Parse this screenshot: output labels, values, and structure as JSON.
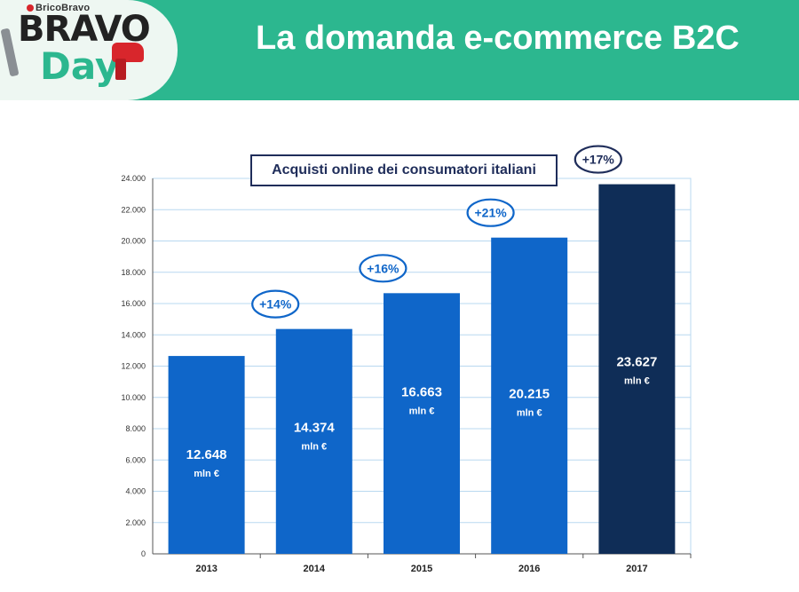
{
  "header": {
    "logo_brand": "BricoBravo",
    "logo_bravo": "BRAVO",
    "logo_day": "Day",
    "title": "La domanda e-commerce B2C"
  },
  "colors": {
    "header_green": "#2cb78f",
    "bar_blue": "#0f66c9",
    "bar_dark": "#0f2d57",
    "grid_blue": "#b8d8f0",
    "label_navy": "#1f2d5a"
  },
  "chart_data": {
    "type": "bar",
    "title": "Acquisti online dei consumatori italiani",
    "categories": [
      "2013",
      "2014",
      "2015",
      "2016",
      "2017"
    ],
    "values": [
      12648,
      14374,
      16663,
      20215,
      23627
    ],
    "value_labels": [
      "12.648",
      "14.374",
      "16.663",
      "20.215",
      "23.627"
    ],
    "unit_label": "mln €",
    "growth_labels": [
      "+14%",
      "+16%",
      "+21%",
      "+17%"
    ],
    "yticks": [
      "0",
      "2.000",
      "4.000",
      "6.000",
      "8.000",
      "10.000",
      "12.000",
      "14.000",
      "16.000",
      "18.000",
      "20.000",
      "22.000",
      "24.000"
    ],
    "ylim": [
      0,
      24000
    ],
    "grid": true,
    "highlight": "2017"
  }
}
